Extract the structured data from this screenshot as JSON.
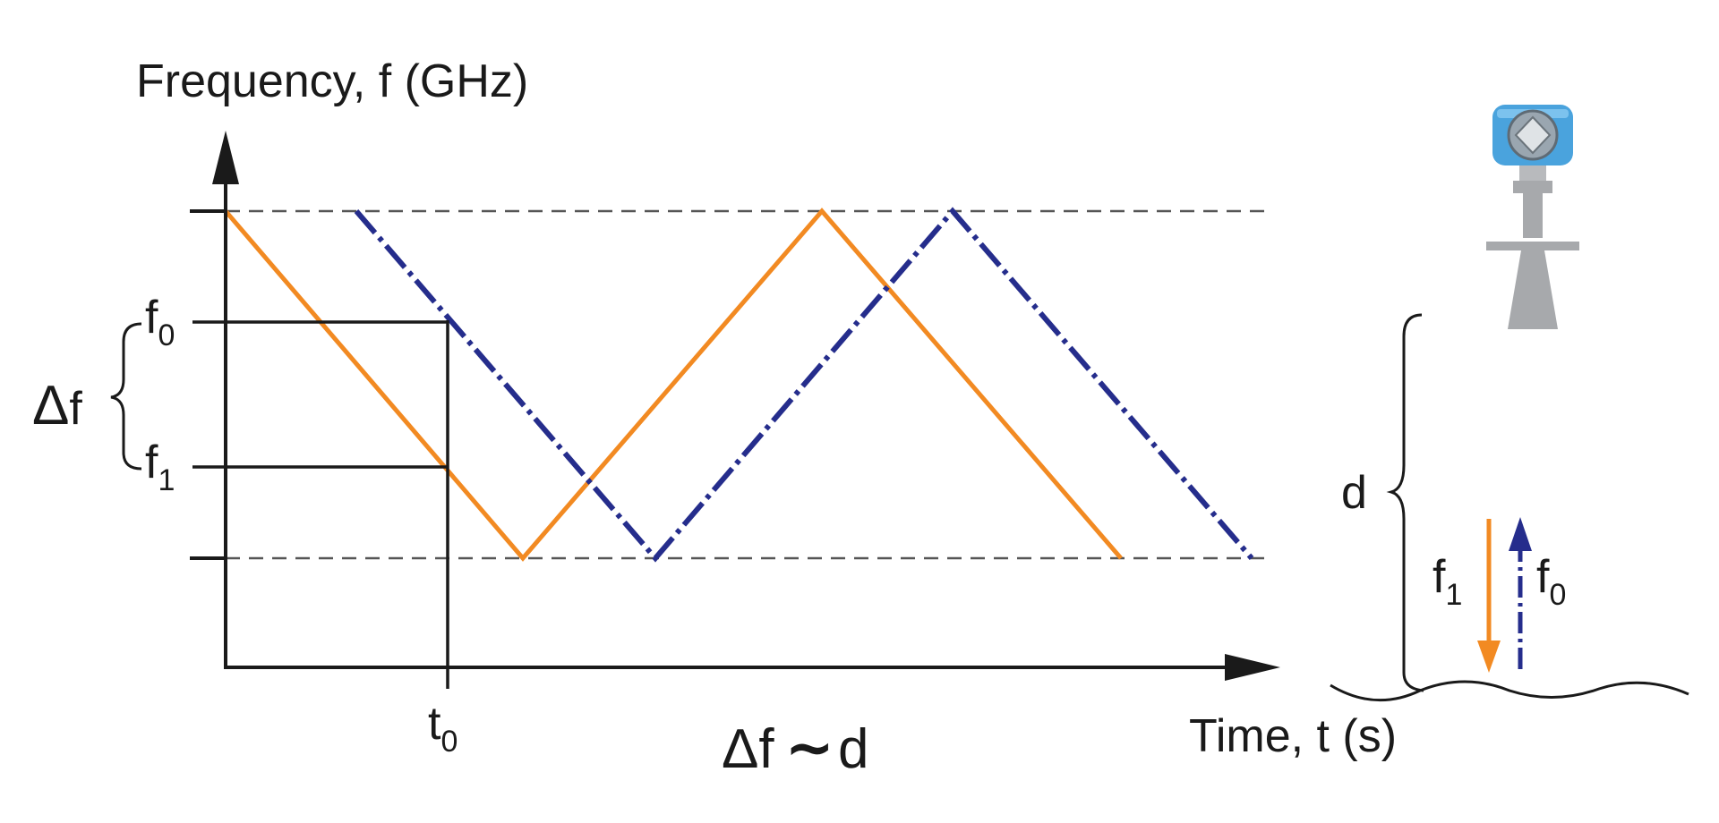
{
  "diagram": {
    "y_axis_label": "Frequency, f (GHz)",
    "x_axis_label": "Time, t (s)",
    "delta_symbol": "Δ",
    "f_letter": "f",
    "t_letter": "t",
    "sub_zero": "0",
    "sub_one": "1",
    "relation_lhs": "Δf",
    "relation_tilde": "∼",
    "relation_rhs": "d",
    "distance_label": "d"
  },
  "colors": {
    "transmitted": "#f28a22",
    "received": "#252d8c",
    "axis": "#1a1a1a",
    "dashed_limit": "#555555",
    "sensor_body": "#a7a9ac",
    "sensor_head": "#4aa3dd"
  },
  "icons": {
    "radar_sensor": "radar-level-transmitter-icon",
    "arrow_down": "arrow-down-icon",
    "arrow_up": "arrow-up-icon"
  }
}
